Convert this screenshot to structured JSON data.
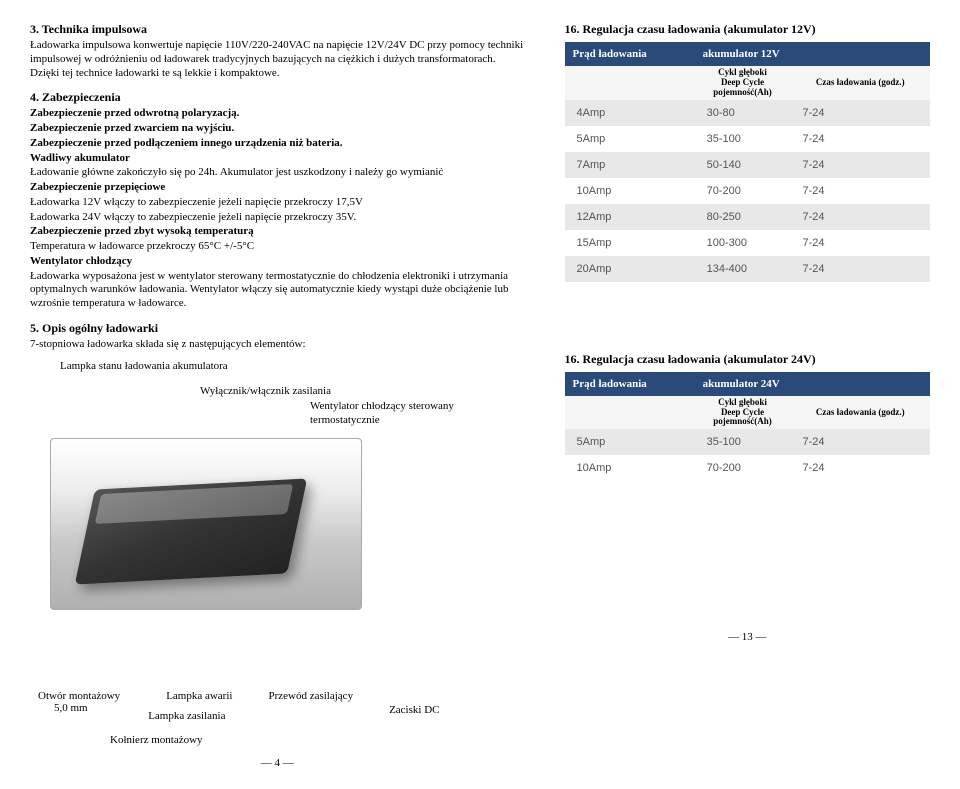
{
  "left": {
    "s3_title": "3. Technika impulsowa",
    "s3_p1": "Ładowarka impulsowa konwertuje napięcie 110V/220-240VAC na napięcie 12V/24V DC przy pomocy techniki impulsowej w odróżnieniu od ładowarek tradycyjnych bazujących na ciężkich i dużych transformatorach. Dzięki tej technice ładowarki te są lekkie i kompaktowe.",
    "s4_title": "4. Zabezpieczenia",
    "s4_l1": "Zabezpieczenie przed odwrotną polaryzacją.",
    "s4_l2": "Zabezpieczenie przed zwarciem na wyjściu.",
    "s4_l3": "Zabezpieczenie przed podłączeniem innego urządzenia niż bateria.",
    "s4_l4": "Wadliwy akumulator",
    "s4_l5": "Ładowanie główne zakończyło się po 24h. Akumulator jest uszkodzony i należy go wymianić",
    "s4_l6": "Zabezpieczenie przepięciowe",
    "s4_l7": "Ładowarka 12V włączy to zabezpieczenie jeżeli napięcie przekroczy 17,5V",
    "s4_l8": "Ładowarka 24V włączy to zabezpieczenie jeżeli napięcie przekroczy 35V.",
    "s4_l9": "Zabezpieczenie przed zbyt wysoką temperaturą",
    "s4_l10": "Temperatura w ładowarce przekroczy 65°C +/-5°C",
    "s4_l11": "Wentylator chłodzący",
    "s4_l12": "Ładowarka wyposażona jest w wentylator sterowany termostatycznie do chłodzenia elektroniki i utrzymania optymalnych warunków ładowania. Wentylator włączy się automatycznie kiedy wystąpi duże obciążenie lub wzrośnie temperatura w ładowarce.",
    "s5_title": "5. Opis ogólny ładowarki",
    "s5_p1": "7-stopniowa ładowarka składa się z następujących elementów:",
    "callout_lamp": "Lampka stanu  ładowania akumulatora",
    "callout_switch": "Wyłącznik/włącznik  zasilania",
    "callout_fan": "Wentylator chłodzący sterowany termostatycznie",
    "lbl_hole": "Otwór montażowy",
    "lbl_hole2": "5,0 mm",
    "lbl_fault": "Lampka awarii",
    "lbl_power": "Lampka zasilania",
    "lbl_cord": "Przewód zasilający",
    "lbl_dc": "Zaciski DC",
    "lbl_collar": "Kołnierz montażowy",
    "pagenum": "4"
  },
  "right": {
    "t12_title": "16. Regulacja czasu ładowania (akumulator 12V)",
    "t24_title": "16. Regulacja czasu ładowania (akumulator 24V)",
    "hdr_current": "Prąd ładowania",
    "hdr_batt12": "akumulator 12V",
    "hdr_batt24": "akumulator 24V",
    "sub_cycle": "Cykl głęboki\nDeep Cycle\npojemność(Ah)",
    "sub_time": "Czas ładowania (godz.)",
    "t12_rows": [
      [
        "4Amp",
        "30-80",
        "7-24"
      ],
      [
        "5Amp",
        "35-100",
        "7-24"
      ],
      [
        "7Amp",
        "50-140",
        "7-24"
      ],
      [
        "10Amp",
        "70-200",
        "7-24"
      ],
      [
        "12Amp",
        "80-250",
        "7-24"
      ],
      [
        "15Amp",
        "100-300",
        "7-24"
      ],
      [
        "20Amp",
        "134-400",
        "7-24"
      ]
    ],
    "t24_rows": [
      [
        "5Amp",
        "35-100",
        "7-24"
      ],
      [
        "10Amp",
        "70-200",
        "7-24"
      ]
    ],
    "pagenum": "13"
  }
}
